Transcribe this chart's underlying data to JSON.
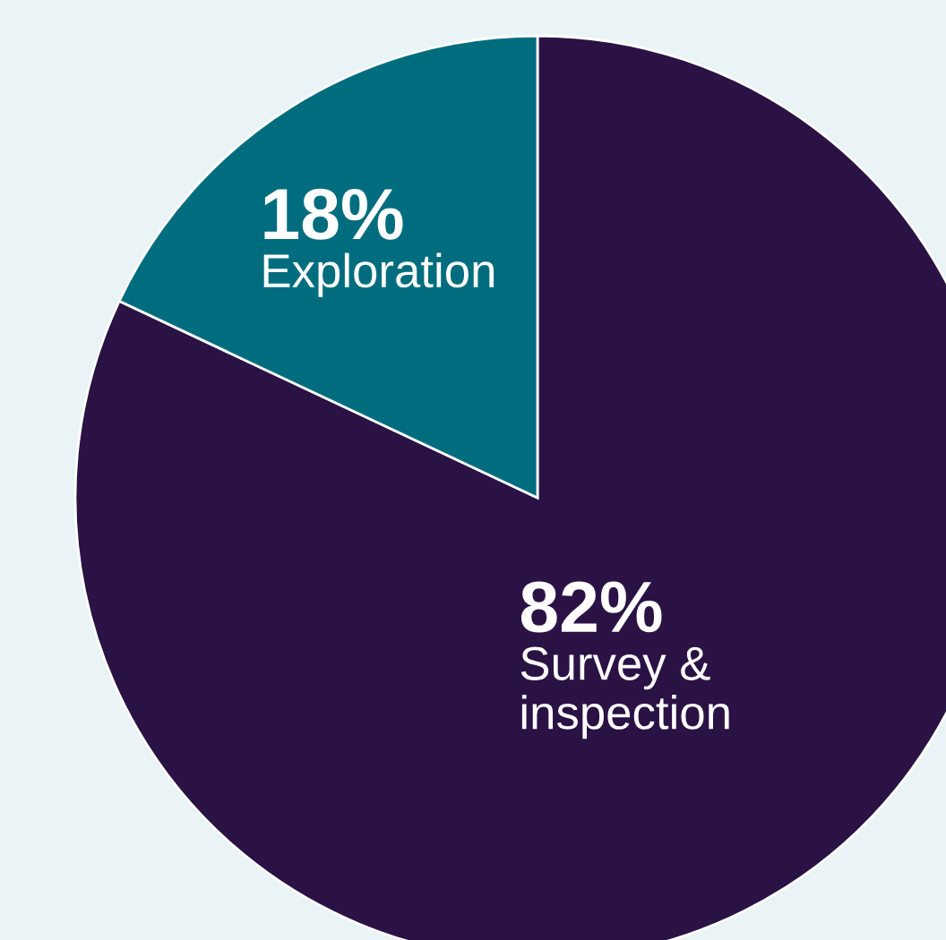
{
  "chart_data": {
    "type": "pie",
    "categories": [
      "Survey & inspection",
      "Exploration"
    ],
    "values": [
      82,
      18
    ],
    "colors": [
      "#2a1245",
      "#006d7e"
    ],
    "value_labels": [
      "82%",
      "18%"
    ],
    "legend": false
  }
}
